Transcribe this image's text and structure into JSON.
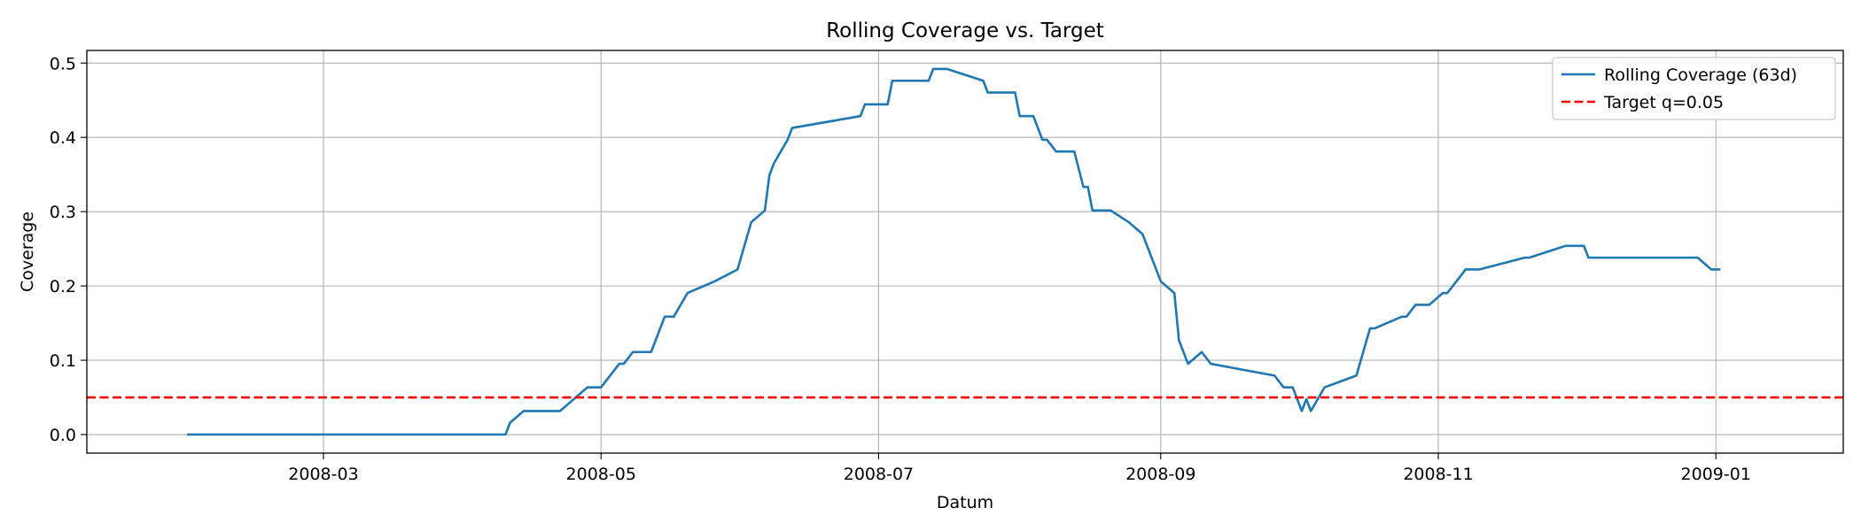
{
  "chart_data": {
    "type": "line",
    "title": "Rolling Coverage vs. Target",
    "xlabel": "Datum",
    "ylabel": "Coverage",
    "xlim": [
      "2008-01-09",
      "2009-01-29"
    ],
    "ylim": [
      -0.025,
      0.517
    ],
    "grid": true,
    "legend_position": "top-right",
    "x_ticks": [
      "2008-03-01",
      "2008-05-01",
      "2008-07-01",
      "2008-09-01",
      "2008-11-01",
      "2009-01-01"
    ],
    "x_tick_labels": [
      "2008-03",
      "2008-05",
      "2008-07",
      "2008-09",
      "2008-11",
      "2009-01"
    ],
    "y_ticks": [
      0.0,
      0.1,
      0.2,
      0.3,
      0.4,
      0.5
    ],
    "y_tick_labels": [
      "0.0",
      "0.1",
      "0.2",
      "0.3",
      "0.4",
      "0.5"
    ],
    "series": [
      {
        "name": "Rolling Coverage (63d)",
        "color": "#1f77b4",
        "style": "solid",
        "x": [
          "2008-01-31",
          "2008-04-10",
          "2008-04-11",
          "2008-04-14",
          "2008-04-21",
          "2008-04-22",
          "2008-04-28",
          "2008-04-29",
          "2008-05-01",
          "2008-05-05",
          "2008-05-06",
          "2008-05-08",
          "2008-05-09",
          "2008-05-12",
          "2008-05-15",
          "2008-05-16",
          "2008-05-17",
          "2008-05-20",
          "2008-05-26",
          "2008-05-31",
          "2008-06-03",
          "2008-06-06",
          "2008-06-07",
          "2008-06-08",
          "2008-06-11",
          "2008-06-12",
          "2008-06-27",
          "2008-06-28",
          "2008-07-03",
          "2008-07-04",
          "2008-07-12",
          "2008-07-13",
          "2008-07-16",
          "2008-07-24",
          "2008-07-25",
          "2008-07-31",
          "2008-08-01",
          "2008-08-04",
          "2008-08-06",
          "2008-08-07",
          "2008-08-09",
          "2008-08-13",
          "2008-08-15",
          "2008-08-16",
          "2008-08-17",
          "2008-08-21",
          "2008-08-25",
          "2008-08-28",
          "2008-09-01",
          "2008-09-04",
          "2008-09-05",
          "2008-09-06",
          "2008-09-07",
          "2008-09-10",
          "2008-09-12",
          "2008-09-26",
          "2008-09-28",
          "2008-09-30",
          "2008-10-02",
          "2008-10-03",
          "2008-10-04",
          "2008-10-07",
          "2008-10-14",
          "2008-10-17",
          "2008-10-18",
          "2008-10-24",
          "2008-10-25",
          "2008-10-27",
          "2008-10-30",
          "2008-11-02",
          "2008-11-03",
          "2008-11-07",
          "2008-11-10",
          "2008-11-20",
          "2008-11-21",
          "2008-11-29",
          "2008-12-03",
          "2008-12-04",
          "2008-12-05",
          "2008-12-28",
          "2008-12-31",
          "2009-01-02"
        ],
        "y": [
          0.0,
          0.0,
          0.0159,
          0.0317,
          0.0317,
          0.0317,
          0.0635,
          0.0635,
          0.0635,
          0.0952,
          0.0952,
          0.1111,
          0.1111,
          0.1111,
          0.1587,
          0.1587,
          0.1587,
          0.1905,
          0.2063,
          0.2222,
          0.2857,
          0.3016,
          0.3492,
          0.3651,
          0.3968,
          0.4127,
          0.4286,
          0.4444,
          0.4444,
          0.4762,
          0.4762,
          0.4921,
          0.4921,
          0.4762,
          0.4603,
          0.4603,
          0.4286,
          0.4286,
          0.3968,
          0.3968,
          0.381,
          0.381,
          0.3333,
          0.3333,
          0.3016,
          0.3016,
          0.2857,
          0.2698,
          0.2063,
          0.1905,
          0.127,
          0.1111,
          0.0952,
          0.1111,
          0.0952,
          0.0794,
          0.0635,
          0.0635,
          0.0317,
          0.0476,
          0.0317,
          0.0635,
          0.0794,
          0.1429,
          0.1429,
          0.1587,
          0.1587,
          0.1746,
          0.1746,
          0.1905,
          0.1905,
          0.2222,
          0.2222,
          0.2381,
          0.2381,
          0.254,
          0.254,
          0.2381,
          0.2381,
          0.2381,
          0.2222,
          0.2222
        ]
      },
      {
        "name": "Target q=0.05",
        "color": "#ff0000",
        "style": "dashed",
        "value": 0.05
      }
    ]
  }
}
